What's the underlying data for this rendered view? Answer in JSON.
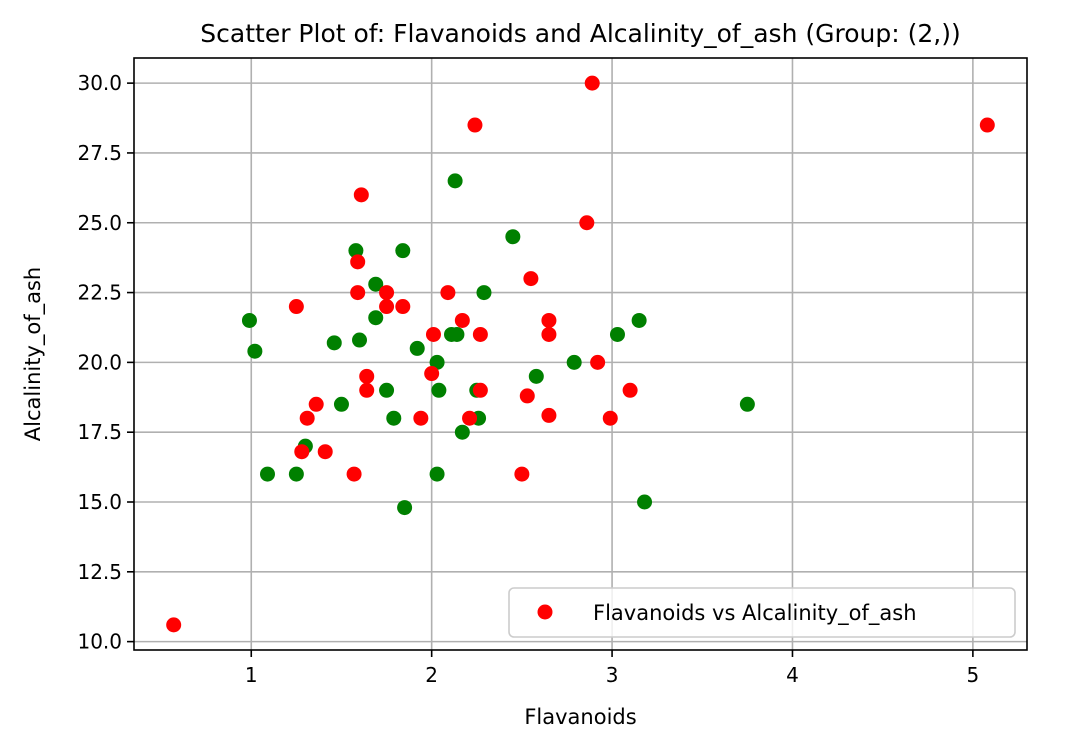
{
  "chart_data": {
    "type": "scatter",
    "title": "Scatter Plot of: Flavanoids and Alcalinity_of_ash (Group: (2,))",
    "xlabel": "Flavanoids",
    "ylabel": "Alcalinity_of_ash",
    "xlim": [
      0.35,
      5.3
    ],
    "ylim": [
      9.7,
      30.9
    ],
    "xticks": [
      1,
      2,
      3,
      4,
      5
    ],
    "xtick_labels": [
      "1",
      "2",
      "3",
      "4",
      "5"
    ],
    "yticks": [
      10.0,
      12.5,
      15.0,
      17.5,
      20.0,
      22.5,
      25.0,
      27.5,
      30.0
    ],
    "ytick_labels": [
      "10.0",
      "12.5",
      "15.0",
      "17.5",
      "20.0",
      "22.5",
      "25.0",
      "27.5",
      "30.0"
    ],
    "grid": true,
    "legend_position": "lower-right",
    "legend_entries": [
      "Flavanoids vs Alcalinity_of_ash"
    ],
    "series": [
      {
        "name": "Flavanoids vs Alcalinity_of_ash",
        "color": "#ff0000",
        "points": [
          [
            0.57,
            10.6
          ],
          [
            1.25,
            22.0
          ],
          [
            1.28,
            16.8
          ],
          [
            1.31,
            18.0
          ],
          [
            1.36,
            18.5
          ],
          [
            1.41,
            16.8
          ],
          [
            1.57,
            16.0
          ],
          [
            1.59,
            22.5
          ],
          [
            1.59,
            23.6
          ],
          [
            1.61,
            26.0
          ],
          [
            1.64,
            19.5
          ],
          [
            1.64,
            19.0
          ],
          [
            1.75,
            22.5
          ],
          [
            1.75,
            22.0
          ],
          [
            1.84,
            22.0
          ],
          [
            1.94,
            18.0
          ],
          [
            2.0,
            19.6
          ],
          [
            2.01,
            21.0
          ],
          [
            2.09,
            22.5
          ],
          [
            2.17,
            21.5
          ],
          [
            2.21,
            18.0
          ],
          [
            2.24,
            28.5
          ],
          [
            2.27,
            21.0
          ],
          [
            2.27,
            19.0
          ],
          [
            2.5,
            16.0
          ],
          [
            2.53,
            18.8
          ],
          [
            2.55,
            23.0
          ],
          [
            2.65,
            21.5
          ],
          [
            2.65,
            21.0
          ],
          [
            2.65,
            18.1
          ],
          [
            2.86,
            25.0
          ],
          [
            2.89,
            30.0
          ],
          [
            2.92,
            20.0
          ],
          [
            2.99,
            18.0
          ],
          [
            3.1,
            19.0
          ],
          [
            5.08,
            28.5
          ]
        ]
      },
      {
        "name": "",
        "color": "#008000",
        "points": [
          [
            0.99,
            21.5
          ],
          [
            1.02,
            20.4
          ],
          [
            1.09,
            16.0
          ],
          [
            1.25,
            16.0
          ],
          [
            1.3,
            17.0
          ],
          [
            1.46,
            20.7
          ],
          [
            1.5,
            18.5
          ],
          [
            1.58,
            24.0
          ],
          [
            1.6,
            20.8
          ],
          [
            1.69,
            22.8
          ],
          [
            1.69,
            21.6
          ],
          [
            1.75,
            19.0
          ],
          [
            1.79,
            18.0
          ],
          [
            1.84,
            24.0
          ],
          [
            1.85,
            14.8
          ],
          [
            1.92,
            20.5
          ],
          [
            2.03,
            20.0
          ],
          [
            2.03,
            16.0
          ],
          [
            2.04,
            19.0
          ],
          [
            2.11,
            21.0
          ],
          [
            2.13,
            26.5
          ],
          [
            2.14,
            21.0
          ],
          [
            2.17,
            17.5
          ],
          [
            2.25,
            19.0
          ],
          [
            2.26,
            18.0
          ],
          [
            2.29,
            22.5
          ],
          [
            2.45,
            24.5
          ],
          [
            2.58,
            19.5
          ],
          [
            2.79,
            20.0
          ],
          [
            3.03,
            21.0
          ],
          [
            3.15,
            21.5
          ],
          [
            3.18,
            15.0
          ],
          [
            3.75,
            18.5
          ]
        ]
      }
    ]
  }
}
